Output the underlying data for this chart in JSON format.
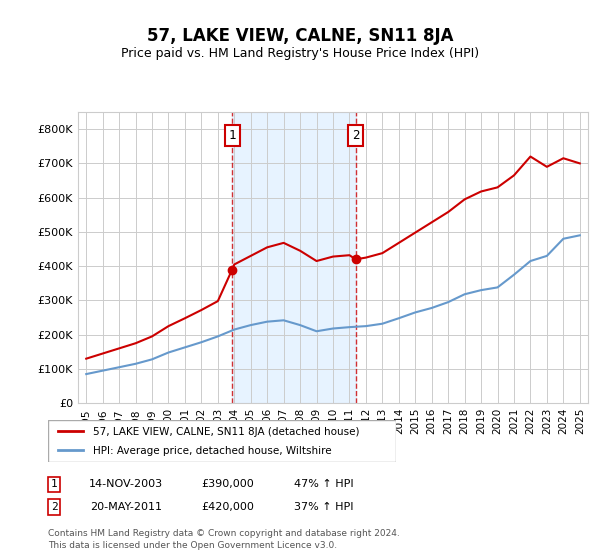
{
  "title": "57, LAKE VIEW, CALNE, SN11 8JA",
  "subtitle": "Price paid vs. HM Land Registry's House Price Index (HPI)",
  "footer1": "Contains HM Land Registry data © Crown copyright and database right 2024.",
  "footer2": "This data is licensed under the Open Government Licence v3.0.",
  "legend_line1": "57, LAKE VIEW, CALNE, SN11 8JA (detached house)",
  "legend_line2": "HPI: Average price, detached house, Wiltshire",
  "annotation1_label": "1",
  "annotation1_date": "14-NOV-2003",
  "annotation1_price": "£390,000",
  "annotation1_hpi": "47% ↑ HPI",
  "annotation2_label": "2",
  "annotation2_date": "20-MAY-2011",
  "annotation2_price": "£420,000",
  "annotation2_hpi": "37% ↑ HPI",
  "sale1_x": 2003.87,
  "sale1_y": 390000,
  "sale2_x": 2011.38,
  "sale2_y": 420000,
  "hpi_color": "#6699cc",
  "price_color": "#cc0000",
  "background_color": "#ffffff",
  "plot_bg_color": "#ffffff",
  "grid_color": "#cccccc",
  "shade_color": "#ddeeff",
  "ylim": [
    0,
    850000
  ],
  "xlim": [
    1994.5,
    2025.5
  ],
  "yticks": [
    0,
    100000,
    200000,
    300000,
    400000,
    500000,
    600000,
    700000,
    800000
  ],
  "ytick_labels": [
    "£0",
    "£100K",
    "£200K",
    "£300K",
    "£400K",
    "£500K",
    "£600K",
    "£700K",
    "£800K"
  ],
  "xticks": [
    1995,
    1996,
    1997,
    1998,
    1999,
    2000,
    2001,
    2002,
    2003,
    2004,
    2005,
    2006,
    2007,
    2008,
    2009,
    2010,
    2011,
    2012,
    2013,
    2014,
    2015,
    2016,
    2017,
    2018,
    2019,
    2020,
    2021,
    2022,
    2023,
    2024,
    2025
  ],
  "hpi_x": [
    1995,
    1996,
    1997,
    1998,
    1999,
    2000,
    2001,
    2002,
    2003,
    2004,
    2005,
    2006,
    2007,
    2008,
    2009,
    2010,
    2011,
    2012,
    2013,
    2014,
    2015,
    2016,
    2017,
    2018,
    2019,
    2020,
    2021,
    2022,
    2023,
    2024,
    2025
  ],
  "hpi_y": [
    85000,
    95000,
    105000,
    115000,
    128000,
    148000,
    163000,
    178000,
    195000,
    215000,
    228000,
    238000,
    242000,
    228000,
    210000,
    218000,
    222000,
    225000,
    232000,
    248000,
    265000,
    278000,
    295000,
    318000,
    330000,
    338000,
    375000,
    415000,
    430000,
    480000,
    490000
  ],
  "price_x": [
    1995,
    1996,
    1997,
    1998,
    1999,
    2000,
    2001,
    2002,
    2003,
    2003.87,
    2004,
    2005,
    2006,
    2007,
    2008,
    2009,
    2010,
    2011,
    2011.38,
    2012,
    2013,
    2014,
    2015,
    2016,
    2017,
    2018,
    2019,
    2020,
    2021,
    2022,
    2023,
    2024,
    2025
  ],
  "price_y": [
    130000,
    145000,
    160000,
    175000,
    195000,
    225000,
    248000,
    272000,
    298000,
    390000,
    405000,
    430000,
    455000,
    468000,
    445000,
    415000,
    428000,
    432000,
    420000,
    425000,
    438000,
    468000,
    498000,
    528000,
    558000,
    595000,
    618000,
    630000,
    665000,
    720000,
    690000,
    715000,
    700000
  ]
}
